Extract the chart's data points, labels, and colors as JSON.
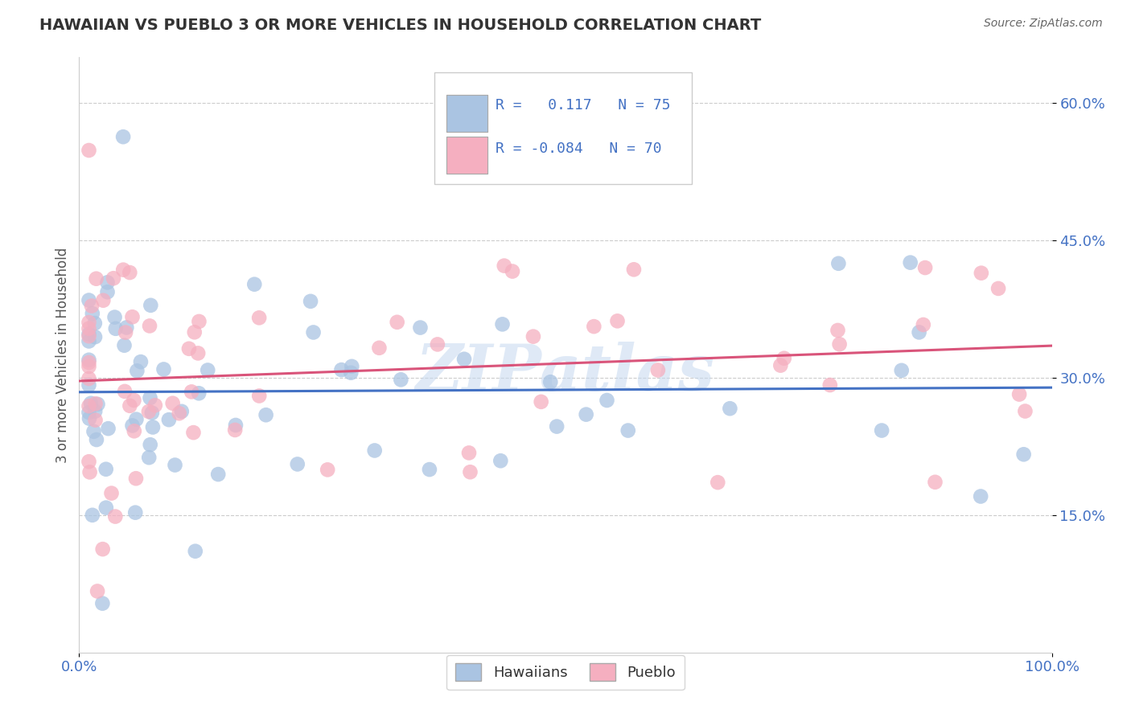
{
  "title": "HAWAIIAN VS PUEBLO 3 OR MORE VEHICLES IN HOUSEHOLD CORRELATION CHART",
  "source": "Source: ZipAtlas.com",
  "ylabel": "3 or more Vehicles in Household",
  "xlim": [
    0.0,
    1.0
  ],
  "ylim": [
    0.0,
    0.65
  ],
  "R_hawaiian": 0.117,
  "N_hawaiian": 75,
  "R_pueblo": -0.084,
  "N_pueblo": 70,
  "hawaiian_color": "#aac4e2",
  "pueblo_color": "#f5afc0",
  "trendline_hawaiian_color": "#4472c4",
  "trendline_pueblo_color": "#d9547a",
  "watermark_color": "#c5d8ef",
  "background_color": "#ffffff",
  "grid_color": "#cccccc",
  "tick_color": "#4472c4",
  "title_color": "#333333",
  "ylabel_color": "#555555"
}
